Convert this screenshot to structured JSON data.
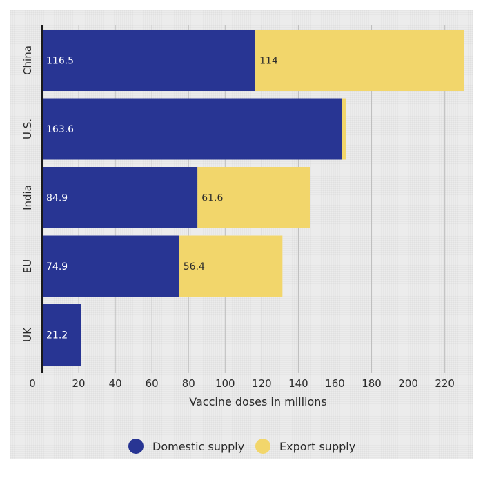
{
  "chart_data": {
    "type": "bar",
    "orientation": "horizontal",
    "stacked": true,
    "categories": [
      "China",
      "U.S.",
      "India",
      "EU",
      "UK"
    ],
    "series": [
      {
        "name": "Domestic supply",
        "color": "#283593",
        "values": [
          116.5,
          163.6,
          84.9,
          74.9,
          21.2
        ]
      },
      {
        "name": "Export supply",
        "color": "#f2d66b",
        "values": [
          114,
          2.6,
          61.6,
          56.4,
          0
        ]
      }
    ],
    "series_labels": [
      [
        "116.5",
        "163.6",
        "84.9",
        "74.9",
        "21.2"
      ],
      [
        "114",
        "",
        "61.6",
        "56.4",
        ""
      ]
    ],
    "xticks": [
      "0",
      "20",
      "40",
      "60",
      "80",
      "100",
      "120",
      "140",
      "160",
      "180",
      "200",
      "220"
    ],
    "xtick_values": [
      0,
      20,
      40,
      60,
      80,
      100,
      120,
      140,
      160,
      180,
      200,
      220
    ],
    "xlim": [
      0,
      230
    ],
    "xlabel": "Vaccine doses in millions",
    "grid": true,
    "legend_position": "bottom"
  }
}
